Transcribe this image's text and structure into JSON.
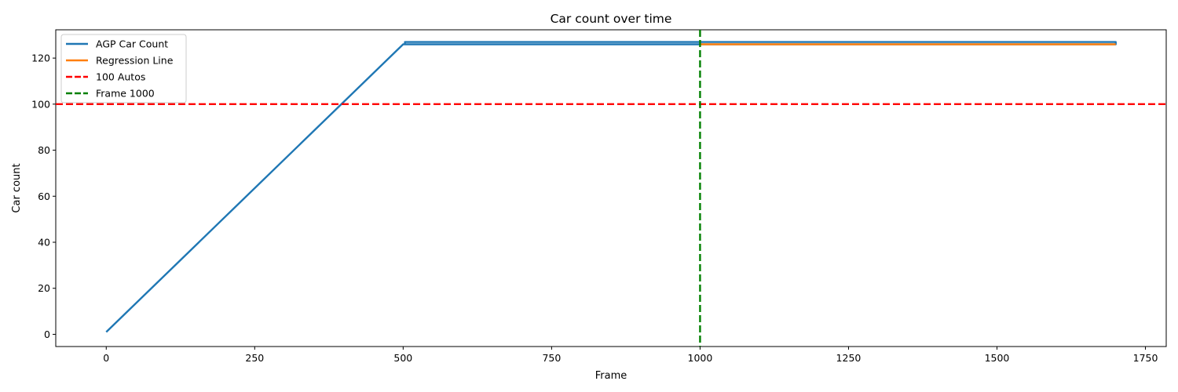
{
  "chart_data": {
    "type": "line",
    "title": "Car count over time",
    "xlabel": "Frame",
    "ylabel": "Car count",
    "xlim": [
      -85,
      1785
    ],
    "ylim": [
      -5.3,
      132.3
    ],
    "xticks": [
      0,
      250,
      500,
      750,
      1000,
      1250,
      1500,
      1750
    ],
    "yticks": [
      0,
      20,
      40,
      60,
      80,
      100,
      120
    ],
    "grid": false,
    "legend_position": "top-left",
    "series": [
      {
        "name": "AGP Car Count",
        "kind": "line",
        "color": "#1f77b4",
        "points": [
          [
            0,
            1
          ],
          [
            500,
            126
          ],
          [
            503,
            126
          ],
          [
            503,
            127
          ],
          [
            1700,
            127
          ],
          [
            1700,
            126
          ],
          [
            503,
            126
          ]
        ]
      },
      {
        "name": "Regression Line",
        "kind": "line",
        "color": "#ff7f0e",
        "points": [
          [
            1000,
            126
          ],
          [
            1700,
            126
          ]
        ]
      },
      {
        "name": "100 Autos",
        "kind": "hline",
        "color": "#ff0000",
        "dashed": true,
        "y": 100
      },
      {
        "name": "Frame 1000",
        "kind": "vline",
        "color": "#008000",
        "dashed": true,
        "x": 1000
      }
    ]
  }
}
